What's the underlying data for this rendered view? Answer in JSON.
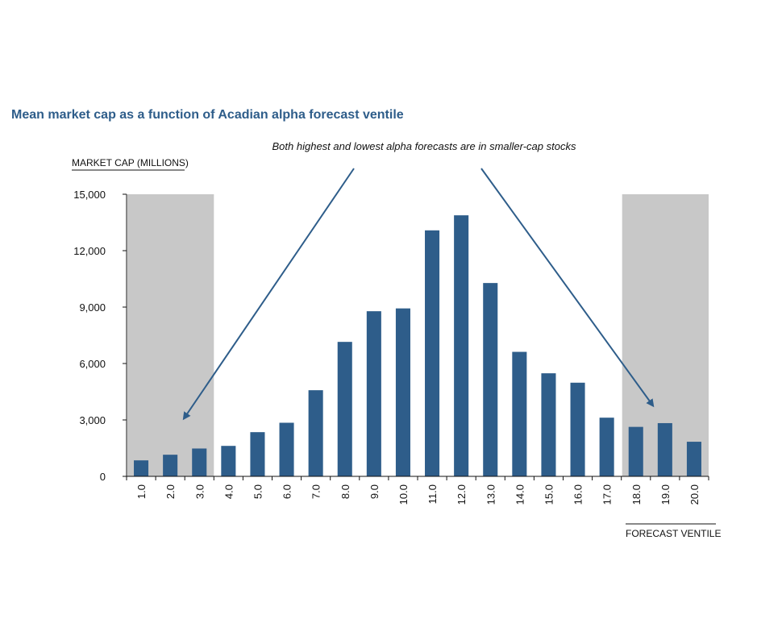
{
  "chart_data": {
    "type": "bar",
    "title": "Mean market cap as a function of Acadian alpha forecast ventile",
    "annotation": "Both highest and lowest alpha forecasts are in smaller-cap stocks",
    "ylabel": "MARKET CAP (MILLIONS)",
    "xlabel": "FORECAST VENTILE",
    "ylim": [
      0,
      15000
    ],
    "yticks": [
      0,
      3000,
      6000,
      9000,
      12000,
      15000
    ],
    "ytick_labels": [
      "0",
      "3,000",
      "6,000",
      "9,000",
      "12,000",
      "15,000"
    ],
    "categories": [
      "1.0",
      "2.0",
      "3.0",
      "4.0",
      "5.0",
      "6.0",
      "7.0",
      "8.0",
      "9.0",
      "10.0",
      "11.0",
      "12.0",
      "13.0",
      "14.0",
      "15.0",
      "16.0",
      "17.0",
      "18.0",
      "19.0",
      "20.0"
    ],
    "values": [
      850,
      1150,
      1480,
      1620,
      2350,
      2850,
      4580,
      7150,
      8780,
      8930,
      13080,
      13880,
      10280,
      6620,
      5480,
      4980,
      3120,
      2630,
      2830,
      1840
    ],
    "shaded_ranges": [
      [
        "1.0",
        "3.0"
      ],
      [
        "18.0",
        "20.0"
      ]
    ],
    "grid": false,
    "legend": "none",
    "colors": {
      "bar": "#2e5d8a",
      "shade": "#c8c8c8",
      "title": "#2e5d8a",
      "arrow": "#2e5d8a",
      "text": "#111111"
    }
  }
}
